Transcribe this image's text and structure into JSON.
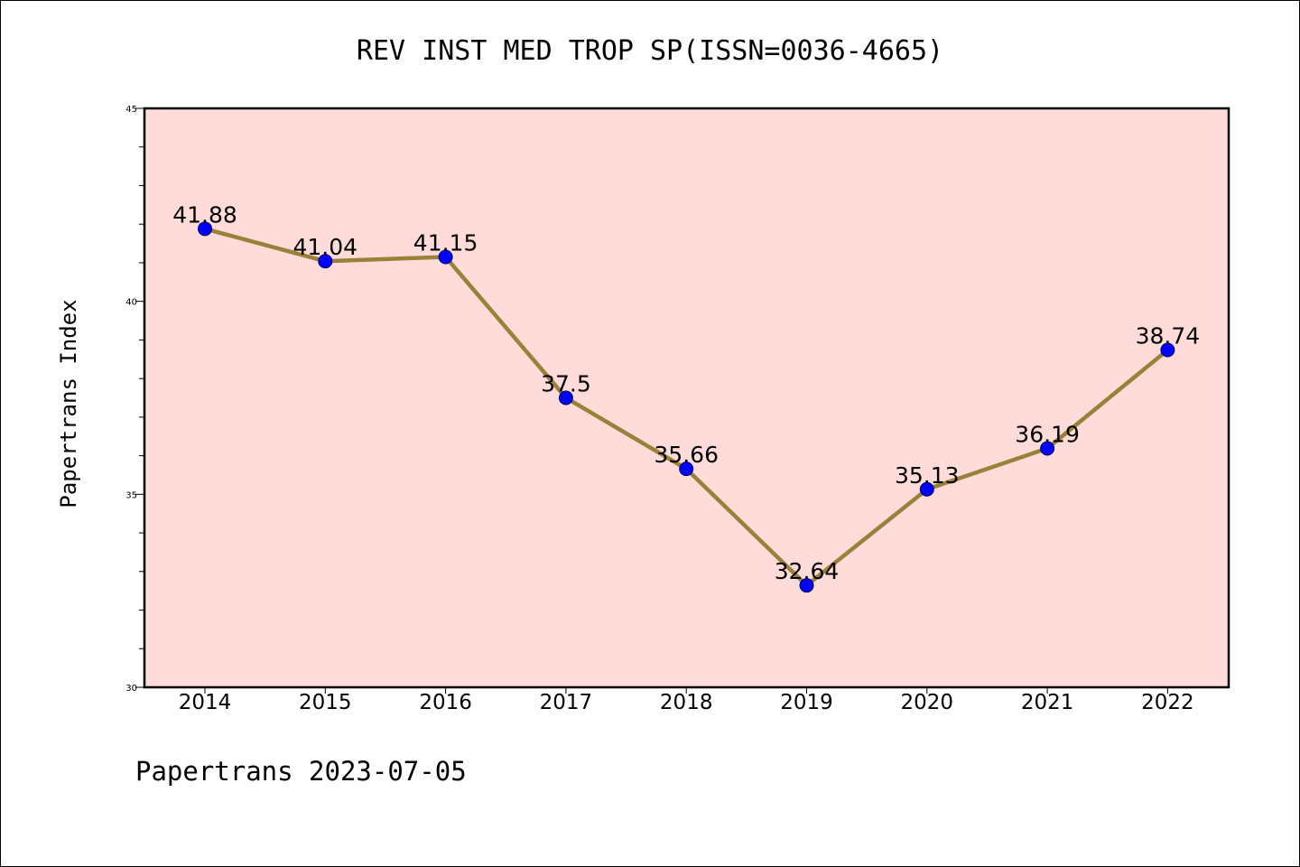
{
  "chart_data": {
    "type": "line",
    "title": "REV INST MED TROP SP(ISSN=0036-4665)",
    "ylabel": "Papertrans Index",
    "xlabel": "",
    "categories": [
      "2014",
      "2015",
      "2016",
      "2017",
      "2018",
      "2019",
      "2020",
      "2021",
      "2022"
    ],
    "series": [
      {
        "values": [
          41.88,
          41.04,
          41.15,
          37.5,
          35.66,
          32.64,
          35.13,
          36.19,
          38.74
        ],
        "labels": [
          "41.88",
          "41.04",
          "41.15",
          "37.5",
          "35.66",
          "32.64",
          "35.13",
          "36.19",
          "38.74"
        ]
      }
    ],
    "ylim": [
      30,
      45
    ],
    "yticks": [
      30,
      35,
      40,
      45
    ],
    "grid": false,
    "colors": {
      "line": "#9a8039",
      "marker": "#0000ff",
      "plot_background": "#ffdcd9"
    }
  },
  "footer": "Papertrans 2023-07-05"
}
